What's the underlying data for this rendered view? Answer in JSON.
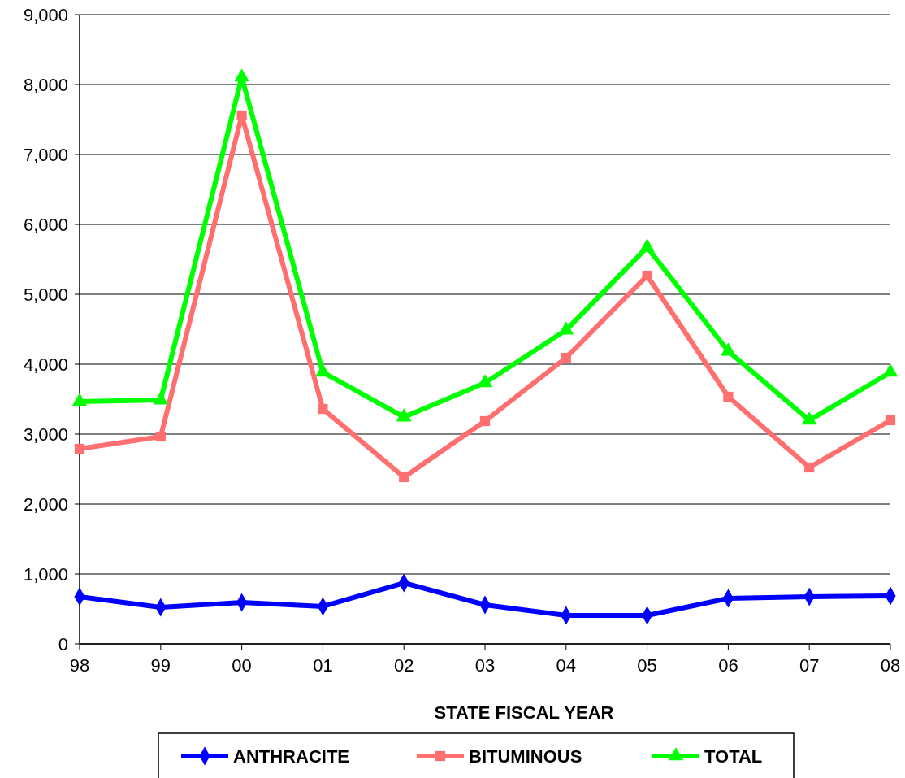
{
  "chart_data": {
    "type": "line",
    "xlabel": "STATE FISCAL YEAR",
    "categories": [
      "98",
      "99",
      "00",
      "01",
      "02",
      "03",
      "04",
      "05",
      "06",
      "07",
      "08"
    ],
    "series": [
      {
        "name": "ANTHRACITE",
        "color": "#0000ff",
        "marker": "diamond",
        "values": [
          675,
          523,
          593,
          535,
          872,
          558,
          407,
          407,
          651,
          674,
          686
        ]
      },
      {
        "name": "BITUMINOUS",
        "color": "#ff6f6f",
        "marker": "square",
        "values": [
          2791,
          2965,
          7558,
          3360,
          2384,
          3186,
          4093,
          5267,
          3535,
          2523,
          3198
        ]
      },
      {
        "name": "TOTAL",
        "color": "#00ff00",
        "marker": "triangle",
        "values": [
          3465,
          3488,
          8105,
          3884,
          3244,
          3733,
          4488,
          5674,
          4186,
          3198,
          3884
        ]
      }
    ],
    "ylim": [
      0,
      9000
    ],
    "yticks": [
      {
        "value": 0,
        "label": "0"
      },
      {
        "value": 1000,
        "label": "1,000"
      },
      {
        "value": 2000,
        "label": "2,000"
      },
      {
        "value": 3000,
        "label": "3,000"
      },
      {
        "value": 4000,
        "label": "4,000"
      },
      {
        "value": 5000,
        "label": "5,000"
      },
      {
        "value": 6000,
        "label": "6,000"
      },
      {
        "value": 7000,
        "label": "7,000"
      },
      {
        "value": 8000,
        "label": "8,000"
      },
      {
        "value": 9000,
        "label": "9,000"
      }
    ],
    "grid": "y",
    "legend": "bottom",
    "line_style": "solid"
  }
}
